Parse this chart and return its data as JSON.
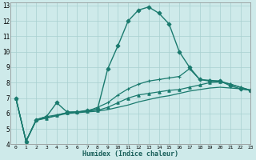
{
  "xlabel": "Humidex (Indice chaleur)",
  "xlim": [
    -0.5,
    23
  ],
  "ylim": [
    4,
    13.2
  ],
  "yticks": [
    4,
    5,
    6,
    7,
    8,
    9,
    10,
    11,
    12,
    13
  ],
  "xticks": [
    0,
    1,
    2,
    3,
    4,
    5,
    6,
    7,
    8,
    9,
    10,
    11,
    12,
    13,
    14,
    15,
    16,
    17,
    18,
    19,
    20,
    21,
    22,
    23
  ],
  "xtick_labels": [
    "0",
    "1",
    "2",
    "3",
    "4",
    "5",
    "6",
    "7",
    "8",
    "9",
    "10",
    "11",
    "12",
    "13",
    "14",
    "15",
    "16",
    "17",
    "18",
    "19",
    "20",
    "21",
    "22",
    "23"
  ],
  "bg_color": "#ceeaea",
  "grid_color": "#a8d0d0",
  "line_color": "#1a7a6e",
  "series": [
    {
      "x": [
        0,
        1,
        2,
        3,
        4,
        5,
        6,
        7,
        8,
        9,
        10,
        11,
        12,
        13,
        14,
        15,
        16,
        17,
        18,
        19,
        20,
        21,
        22,
        23
      ],
      "y": [
        7.0,
        4.2,
        5.6,
        5.8,
        6.7,
        6.1,
        6.1,
        6.2,
        6.3,
        8.9,
        10.4,
        12.0,
        12.7,
        12.9,
        12.5,
        11.8,
        10.0,
        9.0,
        8.2,
        8.1,
        8.1,
        7.8,
        7.6,
        7.5
      ],
      "marker": "D",
      "markersize": 2.5,
      "linewidth": 1.0
    },
    {
      "x": [
        0,
        1,
        2,
        3,
        4,
        5,
        6,
        7,
        8,
        9,
        10,
        11,
        12,
        13,
        14,
        15,
        16,
        17,
        18,
        19,
        20,
        21,
        22,
        23
      ],
      "y": [
        7.0,
        4.2,
        5.6,
        5.8,
        5.9,
        6.05,
        6.1,
        6.15,
        6.4,
        6.7,
        7.2,
        7.6,
        7.9,
        8.1,
        8.2,
        8.3,
        8.4,
        8.9,
        8.2,
        8.15,
        8.1,
        7.9,
        7.7,
        7.5
      ],
      "marker": "+",
      "markersize": 3,
      "linewidth": 0.9
    },
    {
      "x": [
        0,
        1,
        2,
        3,
        4,
        5,
        6,
        7,
        8,
        9,
        10,
        11,
        12,
        13,
        14,
        15,
        16,
        17,
        18,
        19,
        20,
        21,
        22,
        23
      ],
      "y": [
        7.0,
        4.2,
        5.6,
        5.7,
        5.9,
        6.05,
        6.1,
        6.15,
        6.2,
        6.4,
        6.7,
        7.0,
        7.2,
        7.3,
        7.4,
        7.5,
        7.55,
        7.7,
        7.85,
        8.0,
        8.05,
        7.9,
        7.7,
        7.5
      ],
      "marker": "^",
      "markersize": 2.5,
      "linewidth": 0.9
    },
    {
      "x": [
        0,
        1,
        2,
        3,
        4,
        5,
        6,
        7,
        8,
        9,
        10,
        11,
        12,
        13,
        14,
        15,
        16,
        17,
        18,
        19,
        20,
        21,
        22,
        23
      ],
      "y": [
        7.0,
        4.2,
        5.55,
        5.7,
        5.85,
        6.0,
        6.05,
        6.1,
        6.15,
        6.25,
        6.4,
        6.55,
        6.75,
        6.9,
        7.05,
        7.15,
        7.3,
        7.45,
        7.55,
        7.65,
        7.7,
        7.65,
        7.6,
        7.5
      ],
      "marker": null,
      "markersize": 0,
      "linewidth": 0.9
    }
  ]
}
